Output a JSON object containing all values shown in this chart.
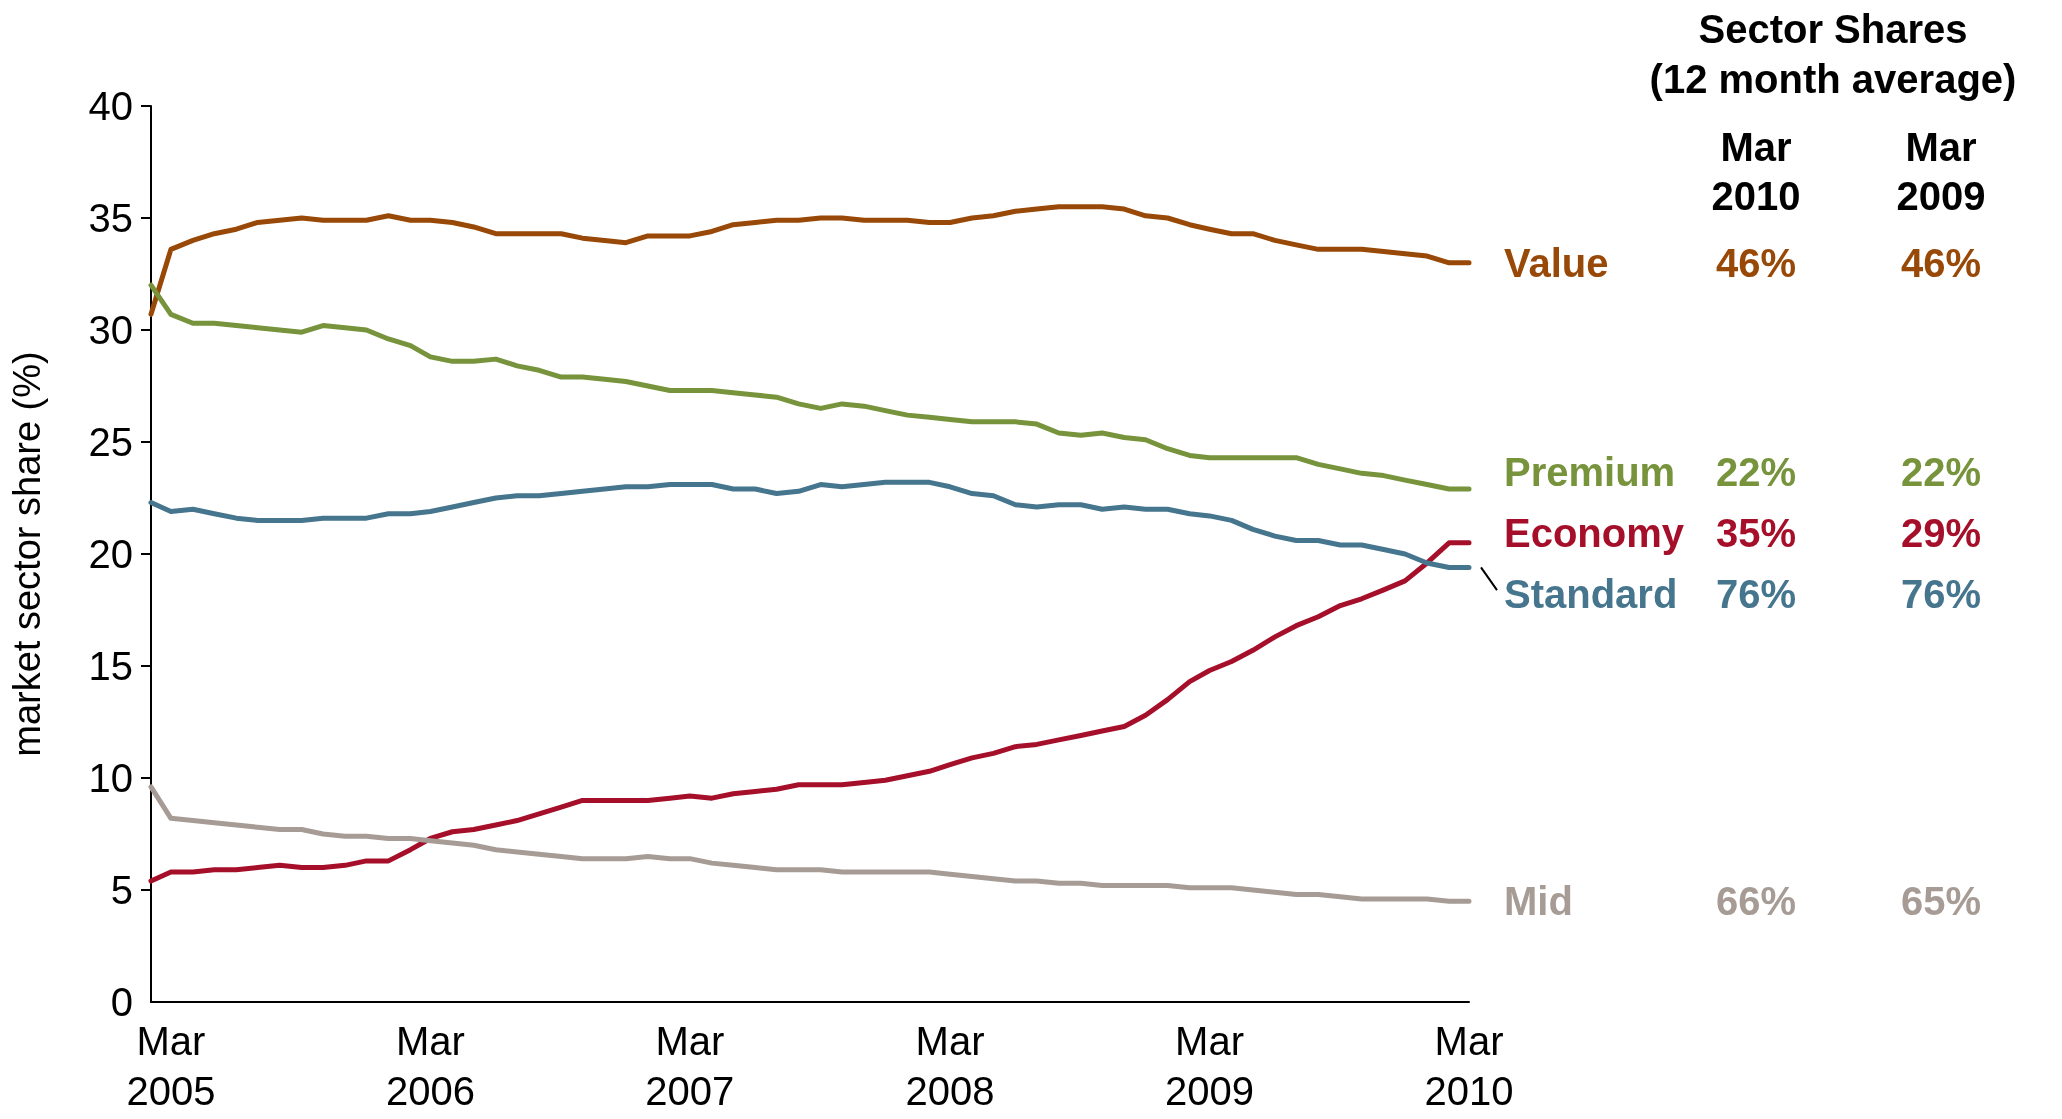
{
  "chart_data": {
    "type": "line",
    "ylabel": "market sector share (%)",
    "x": [
      "2005-02",
      "2005-03",
      "2005-04",
      "2005-05",
      "2005-06",
      "2005-07",
      "2005-08",
      "2005-09",
      "2005-10",
      "2005-11",
      "2005-12",
      "2006-01",
      "2006-02",
      "2006-03",
      "2006-04",
      "2006-05",
      "2006-06",
      "2006-07",
      "2006-08",
      "2006-09",
      "2006-10",
      "2006-11",
      "2006-12",
      "2007-01",
      "2007-02",
      "2007-03",
      "2007-04",
      "2007-05",
      "2007-06",
      "2007-07",
      "2007-08",
      "2007-09",
      "2007-10",
      "2007-11",
      "2007-12",
      "2008-01",
      "2008-02",
      "2008-03",
      "2008-04",
      "2008-05",
      "2008-06",
      "2008-07",
      "2008-08",
      "2008-09",
      "2008-10",
      "2008-11",
      "2008-12",
      "2009-01",
      "2009-02",
      "2009-03",
      "2009-04",
      "2009-05",
      "2009-06",
      "2009-07",
      "2009-08",
      "2009-09",
      "2009-10",
      "2009-11",
      "2009-12",
      "2010-01",
      "2010-02",
      "2010-03"
    ],
    "xlim": [
      "2005-02",
      "2010-03"
    ],
    "xticks": [
      {
        "value": "2005-03",
        "label": "Mar 2005"
      },
      {
        "value": "2006-03",
        "label": "Mar 2006"
      },
      {
        "value": "2007-03",
        "label": "Mar 2007"
      },
      {
        "value": "2008-03",
        "label": "Mar 2008"
      },
      {
        "value": "2009-03",
        "label": "Mar 2009"
      },
      {
        "value": "2010-03",
        "label": "Mar 2010"
      }
    ],
    "ylim": [
      0,
      40
    ],
    "yticks": [
      0,
      5,
      10,
      15,
      20,
      25,
      30,
      35,
      40
    ],
    "marker": "none",
    "line_style": "solid",
    "series": [
      {
        "name": "Value",
        "color": "#984807",
        "values": [
          30.7,
          33.6,
          34.0,
          34.3,
          34.5,
          34.8,
          34.9,
          35.0,
          34.9,
          34.9,
          34.9,
          35.1,
          34.9,
          34.9,
          34.8,
          34.6,
          34.3,
          34.3,
          34.3,
          34.3,
          34.1,
          34.0,
          33.9,
          34.2,
          34.2,
          34.2,
          34.4,
          34.7,
          34.8,
          34.9,
          34.9,
          35.0,
          35.0,
          34.9,
          34.9,
          34.9,
          34.8,
          34.8,
          35.0,
          35.1,
          35.3,
          35.4,
          35.5,
          35.5,
          35.5,
          35.4,
          35.1,
          35.0,
          34.7,
          34.5,
          34.3,
          34.3,
          34.0,
          33.8,
          33.6,
          33.6,
          33.6,
          33.5,
          33.4,
          33.3,
          33.0,
          33.0
        ]
      },
      {
        "name": "Premium",
        "color": "#77933c",
        "values": [
          32.0,
          30.7,
          30.3,
          30.3,
          30.2,
          30.1,
          30.0,
          29.9,
          30.2,
          30.1,
          30.0,
          29.6,
          29.3,
          28.8,
          28.6,
          28.6,
          28.7,
          28.4,
          28.2,
          27.9,
          27.9,
          27.8,
          27.7,
          27.5,
          27.3,
          27.3,
          27.3,
          27.2,
          27.1,
          27.0,
          26.7,
          26.5,
          26.7,
          26.6,
          26.4,
          26.2,
          26.1,
          26.0,
          25.9,
          25.9,
          25.9,
          25.8,
          25.4,
          25.3,
          25.4,
          25.2,
          25.1,
          24.7,
          24.4,
          24.3,
          24.3,
          24.3,
          24.3,
          24.3,
          24.0,
          23.8,
          23.6,
          23.5,
          23.3,
          23.1,
          22.9,
          22.9
        ]
      },
      {
        "name": "Economy",
        "color": "#a50f2a",
        "values": [
          5.4,
          5.8,
          5.8,
          5.9,
          5.9,
          6.0,
          6.1,
          6.0,
          6.0,
          6.1,
          6.3,
          6.3,
          6.8,
          7.3,
          7.6,
          7.7,
          7.9,
          8.1,
          8.4,
          8.7,
          9.0,
          9.0,
          9.0,
          9.0,
          9.1,
          9.2,
          9.1,
          9.3,
          9.4,
          9.5,
          9.7,
          9.7,
          9.7,
          9.8,
          9.9,
          10.1,
          10.3,
          10.6,
          10.9,
          11.1,
          11.4,
          11.5,
          11.7,
          11.9,
          12.1,
          12.3,
          12.8,
          13.5,
          14.3,
          14.8,
          15.2,
          15.7,
          16.3,
          16.8,
          17.2,
          17.7,
          18.0,
          18.4,
          18.8,
          19.6,
          20.5,
          20.5
        ]
      },
      {
        "name": "Standard",
        "color": "#46758e",
        "values": [
          22.3,
          21.9,
          22.0,
          21.8,
          21.6,
          21.5,
          21.5,
          21.5,
          21.6,
          21.6,
          21.6,
          21.8,
          21.8,
          21.9,
          22.1,
          22.3,
          22.5,
          22.6,
          22.6,
          22.7,
          22.8,
          22.9,
          23.0,
          23.0,
          23.1,
          23.1,
          23.1,
          22.9,
          22.9,
          22.7,
          22.8,
          23.1,
          23.0,
          23.1,
          23.2,
          23.2,
          23.2,
          23.0,
          22.7,
          22.6,
          22.2,
          22.1,
          22.2,
          22.2,
          22.0,
          22.1,
          22.0,
          22.0,
          21.8,
          21.7,
          21.5,
          21.1,
          20.8,
          20.6,
          20.6,
          20.4,
          20.4,
          20.2,
          20.0,
          19.6,
          19.4,
          19.4
        ]
      },
      {
        "name": "Mid",
        "color": "#a69c95",
        "values": [
          9.6,
          8.2,
          8.1,
          8.0,
          7.9,
          7.8,
          7.7,
          7.7,
          7.5,
          7.4,
          7.4,
          7.3,
          7.3,
          7.2,
          7.1,
          7.0,
          6.8,
          6.7,
          6.6,
          6.5,
          6.4,
          6.4,
          6.4,
          6.5,
          6.4,
          6.4,
          6.2,
          6.1,
          6.0,
          5.9,
          5.9,
          5.9,
          5.8,
          5.8,
          5.8,
          5.8,
          5.8,
          5.7,
          5.6,
          5.5,
          5.4,
          5.4,
          5.3,
          5.3,
          5.2,
          5.2,
          5.2,
          5.2,
          5.1,
          5.1,
          5.1,
          5.0,
          4.9,
          4.8,
          4.8,
          4.7,
          4.6,
          4.6,
          4.6,
          4.6,
          4.5,
          4.5
        ]
      }
    ],
    "annotations": [
      "Sector Shares",
      "(12 month average)",
      "Mar 2010",
      "Mar 2009",
      "46%",
      "46%",
      "22%",
      "22%",
      "35%",
      "29%",
      "76%",
      "76%",
      "66%",
      "65%"
    ]
  }
}
